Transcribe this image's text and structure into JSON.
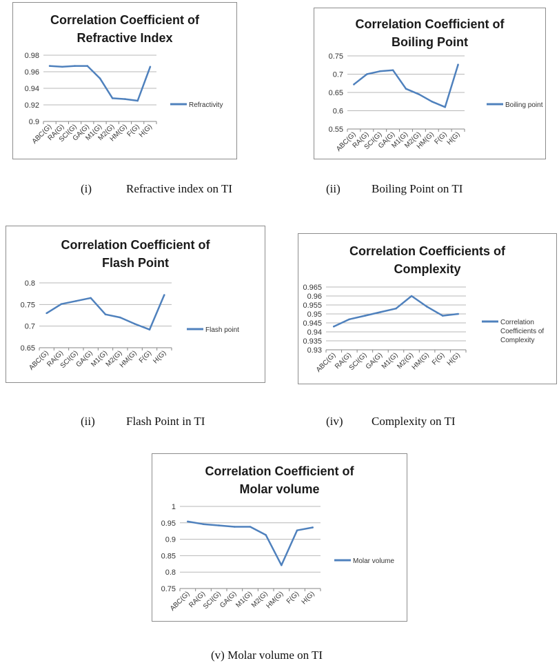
{
  "chart_data": [
    {
      "type": "line",
      "title_line1": "Correlation Coefficient of",
      "title_line2": "Refractive Index",
      "categories": [
        "ABC(G)",
        "RA(G)",
        "SCI(G)",
        "GA(G)",
        "M1(G)",
        "M2(G)",
        "HM(G)",
        "F(G)",
        "H(G)"
      ],
      "series": [
        {
          "name": "Refractivity",
          "values": [
            0.967,
            0.966,
            0.967,
            0.967,
            0.952,
            0.928,
            0.927,
            0.925,
            0.966
          ]
        }
      ],
      "yticks": [
        "0.9",
        "0.92",
        "0.94",
        "0.96",
        "0.98"
      ],
      "ylim": [
        0.9,
        0.98
      ],
      "grid": true,
      "legend": "right",
      "color": "#4f81bd"
    },
    {
      "type": "line",
      "title_line1": "Correlation Coefficient of",
      "title_line2": "Boiling Point",
      "categories": [
        "ABC(G)",
        "RA(G)",
        "SCI(G)",
        "GA(G)",
        "M1(G)",
        "M2(G)",
        "HM(G)",
        "F(G)",
        "H(G)"
      ],
      "series": [
        {
          "name": "Boiling point",
          "values": [
            0.672,
            0.7,
            0.708,
            0.711,
            0.66,
            0.645,
            0.625,
            0.61,
            0.726
          ]
        }
      ],
      "yticks": [
        "0.55",
        "0.6",
        "0.65",
        "0.7",
        "0.75"
      ],
      "ylim": [
        0.55,
        0.75
      ],
      "grid": true,
      "legend": "right",
      "color": "#4f81bd"
    },
    {
      "type": "line",
      "title_line1": "Correlation Coefficient of",
      "title_line2": "Flash Point",
      "categories": [
        "ABC(G)",
        "RA(G)",
        "SCI(G)",
        "GA(G)",
        "M1(G)",
        "M2(G)",
        "HM(G)",
        "F(G)",
        "H(G)"
      ],
      "series": [
        {
          "name": "Flash point",
          "values": [
            0.73,
            0.751,
            0.758,
            0.765,
            0.727,
            0.72,
            0.705,
            0.692,
            0.772
          ]
        }
      ],
      "yticks": [
        "0.65",
        "0.7",
        "0.75",
        "0.8"
      ],
      "ylim": [
        0.65,
        0.8
      ],
      "grid": true,
      "legend": "right",
      "color": "#4f81bd"
    },
    {
      "type": "line",
      "title_line1": "Correlation Coefficients of",
      "title_line2": "Complexity",
      "categories": [
        "ABC(G)",
        "RA(G)",
        "SCI(G)",
        "GA(G)",
        "M1(G)",
        "M2(G)",
        "HM(G)",
        "F(G)",
        "H(G)"
      ],
      "series": [
        {
          "name": "Correlation Coefficients of Complexity",
          "name_lines": [
            "Correlation",
            "Coefficients of",
            "Complexity"
          ],
          "values": [
            0.943,
            0.947,
            0.949,
            0.951,
            0.953,
            0.96,
            0.954,
            0.949,
            0.95
          ]
        }
      ],
      "yticks": [
        "0.93",
        "0.935",
        "0.94",
        "0.945",
        "0.95",
        "0.955",
        "0.96",
        "0.965"
      ],
      "ylim": [
        0.93,
        0.965
      ],
      "grid": true,
      "legend": "right",
      "color": "#4f81bd"
    },
    {
      "type": "line",
      "title_line1": "Correlation Coefficient of",
      "title_line2": "Molar volume",
      "categories": [
        "ABC(G)",
        "RA(G)",
        "SCI(G)",
        "GA(G)",
        "M1(G)",
        "M2(G)",
        "HM(G)",
        "F(G)",
        "H(G)"
      ],
      "series": [
        {
          "name": "Molar volume",
          "values": [
            0.954,
            0.946,
            0.942,
            0.938,
            0.938,
            0.913,
            0.821,
            0.927,
            0.936
          ]
        }
      ],
      "yticks": [
        "0.75",
        "0.8",
        "0.85",
        "0.9",
        "0.95",
        "1"
      ],
      "ylim": [
        0.75,
        1.0
      ],
      "grid": true,
      "legend": "right",
      "color": "#4f81bd"
    }
  ],
  "captions": [
    {
      "num": "(i)",
      "text": "Refractive index on TI"
    },
    {
      "num": "(ii)",
      "text": "Boiling Point on TI"
    },
    {
      "num": "(ii)",
      "text": "Flash Point in TI"
    },
    {
      "num": "(iv)",
      "text": "Complexity on TI"
    },
    {
      "text": "(v) Molar volume on TI"
    }
  ]
}
